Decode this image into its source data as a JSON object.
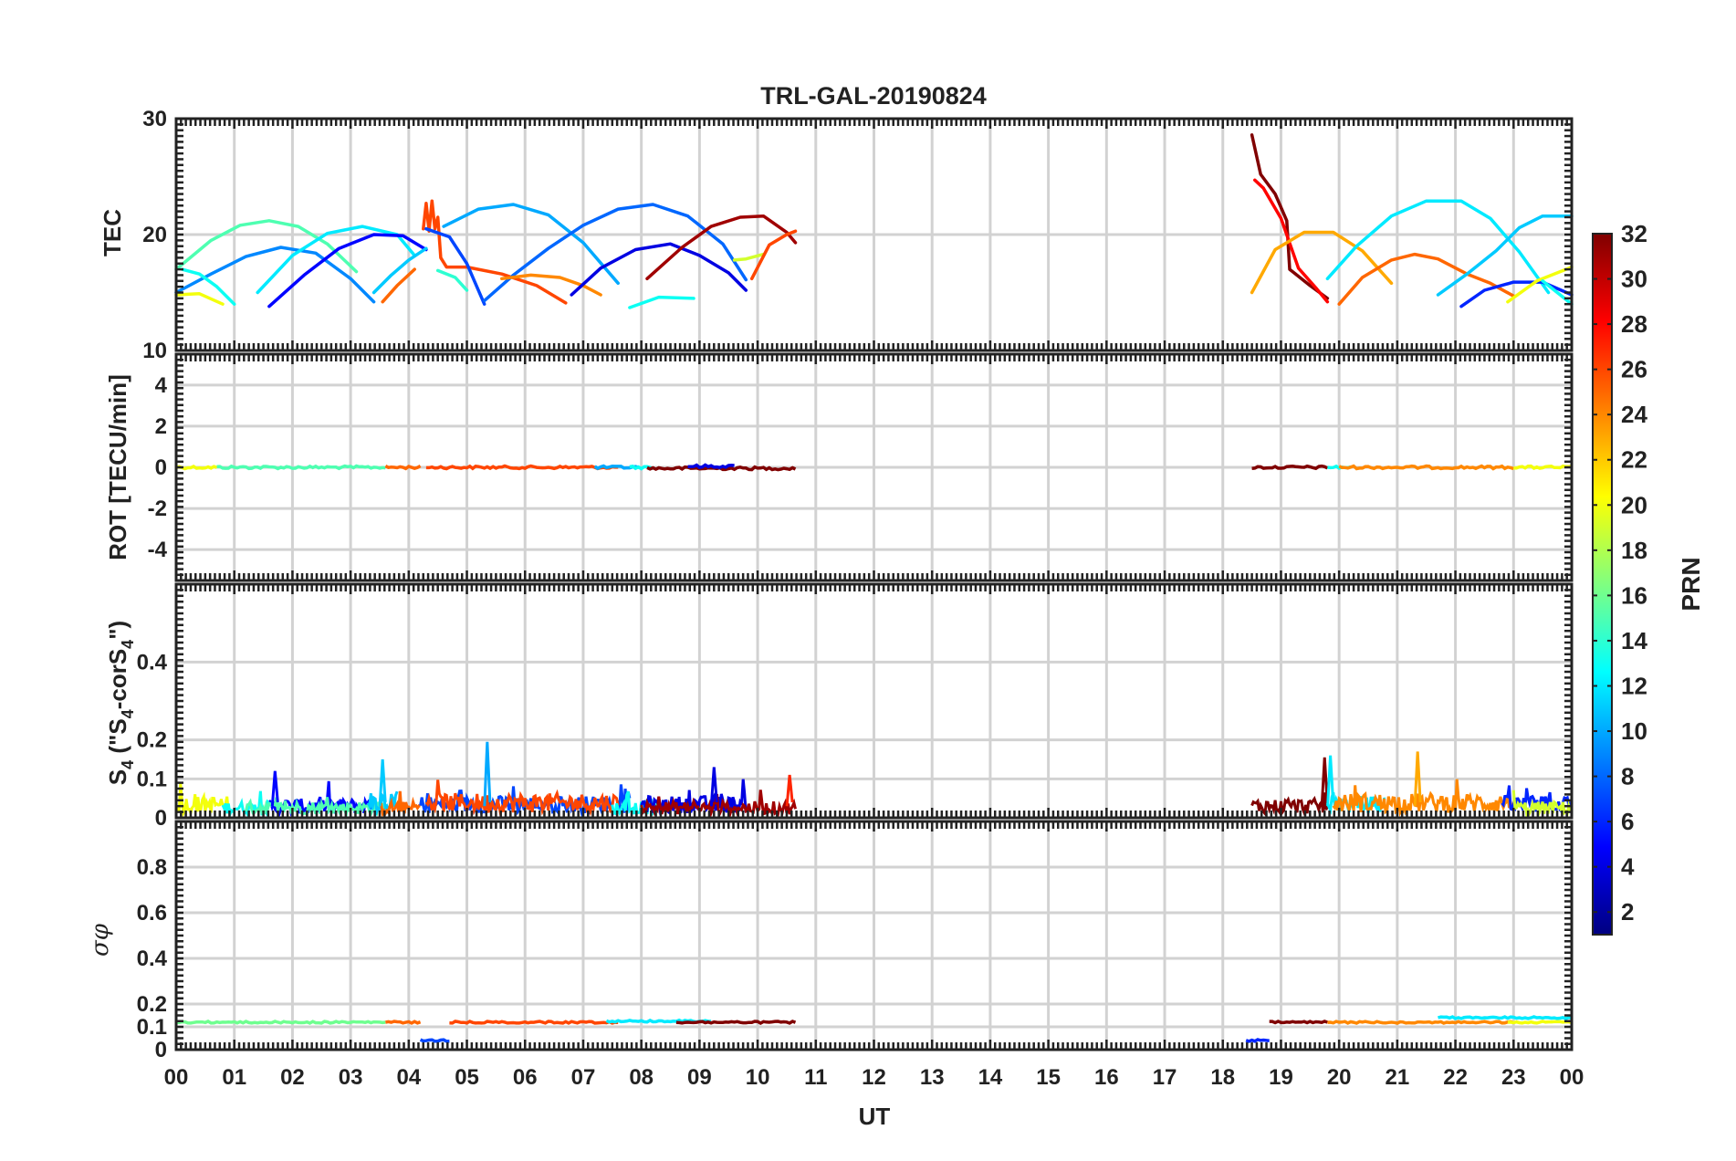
{
  "chart_data": {
    "type": "line",
    "title": "TRL-GAL-20190824",
    "xlabel": "UT",
    "x_ticks": [
      "00",
      "01",
      "02",
      "03",
      "04",
      "05",
      "06",
      "07",
      "08",
      "09",
      "10",
      "11",
      "12",
      "13",
      "14",
      "15",
      "16",
      "17",
      "18",
      "19",
      "20",
      "21",
      "22",
      "23",
      "00"
    ],
    "xlim": [
      0,
      24
    ],
    "colorbar": {
      "label": "PRN",
      "range": [
        1,
        32
      ],
      "ticks": [
        "2",
        "4",
        "6",
        "8",
        "10",
        "12",
        "14",
        "16",
        "18",
        "20",
        "22",
        "24",
        "26",
        "28",
        "30",
        "32"
      ]
    },
    "panels": [
      {
        "id": "tec",
        "ylabel": "TEC",
        "ylim": [
          10,
          30
        ],
        "y_ticks": [
          "10",
          "20",
          "30"
        ],
        "series": [
          {
            "prn": 9,
            "x": [
              0.0,
              0.6,
              1.2,
              1.8,
              2.4,
              3.0,
              3.4
            ],
            "y": [
              15,
              16.6,
              18.1,
              18.9,
              18.4,
              16.2,
              14.2
            ]
          },
          {
            "prn": 15,
            "x": [
              0.0,
              0.6,
              1.1,
              1.6,
              2.1,
              2.6,
              3.1
            ],
            "y": [
              17,
              19.5,
              20.8,
              21.2,
              20.7,
              19.2,
              16.8
            ]
          },
          {
            "prn": 13,
            "x": [
              0.1,
              0.4,
              0.7,
              1.0
            ],
            "y": [
              17,
              16.6,
              15.5,
              14
            ]
          },
          {
            "prn": 20,
            "x": [
              0.0,
              0.4,
              0.8
            ],
            "y": [
              14.8,
              14.9,
              14
            ]
          },
          {
            "prn": 12,
            "x": [
              1.4,
              2.0,
              2.6,
              3.2,
              3.8,
              4.1
            ],
            "y": [
              15,
              18.2,
              20.1,
              20.7,
              20,
              18.2
            ]
          },
          {
            "prn": 5,
            "x": [
              1.6,
              2.2,
              2.8,
              3.4,
              3.9,
              4.3
            ],
            "y": [
              13.8,
              16.5,
              18.8,
              20,
              19.9,
              18.7
            ]
          },
          {
            "prn": 11,
            "x": [
              3.4,
              3.7,
              4.0,
              4.3
            ],
            "y": [
              15,
              16.5,
              17.8,
              18.8
            ]
          },
          {
            "prn": 25,
            "x": [
              3.55,
              3.8,
              4.1
            ],
            "y": [
              14.2,
              15.6,
              17
            ]
          },
          {
            "prn": 26,
            "x": [
              4.25,
              4.3,
              4.35,
              4.4,
              4.45,
              4.5,
              4.55,
              4.65,
              5.0,
              5.6,
              6.2,
              6.7
            ],
            "y": [
              20.5,
              22.7,
              20.3,
              22.9,
              20.5,
              21.5,
              18,
              17.2,
              17.2,
              16.6,
              15.6,
              14.1
            ]
          },
          {
            "prn": 7,
            "x": [
              4.3,
              4.7,
              5.0,
              5.3
            ],
            "y": [
              20.5,
              19.8,
              17.5,
              14
            ]
          },
          {
            "prn": 14,
            "x": [
              4.5,
              4.8,
              5.0
            ],
            "y": [
              16.9,
              16.3,
              15.2
            ]
          },
          {
            "prn": 10,
            "x": [
              4.6,
              5.2,
              5.8,
              6.4,
              7.0,
              7.6
            ],
            "y": [
              20.7,
              22.2,
              22.6,
              21.7,
              19.3,
              15.8
            ]
          },
          {
            "prn": 8,
            "x": [
              5.3,
              5.8,
              6.4,
              7.0,
              7.6,
              8.2,
              8.8,
              9.4,
              9.8
            ],
            "y": [
              14.3,
              16.5,
              18.8,
              20.8,
              22.2,
              22.6,
              21.6,
              19.2,
              16.1
            ]
          },
          {
            "prn": 24,
            "x": [
              5.6,
              6.1,
              6.6,
              7.0,
              7.3
            ],
            "y": [
              16.2,
              16.5,
              16.3,
              15.6,
              14.8
            ]
          },
          {
            "prn": 4,
            "x": [
              6.8,
              7.3,
              7.9,
              8.5,
              9.0,
              9.5,
              9.8
            ],
            "y": [
              14.8,
              17.1,
              18.7,
              19.2,
              18.2,
              16.7,
              15.2
            ]
          },
          {
            "prn": 13,
            "x": [
              7.8,
              8.3,
              8.9
            ],
            "y": [
              13.7,
              14.6,
              14.5
            ]
          },
          {
            "prn": 31,
            "x": [
              8.1,
              8.7,
              9.2,
              9.7,
              10.1,
              10.5,
              10.65
            ],
            "y": [
              16.2,
              18.9,
              20.7,
              21.5,
              21.6,
              20.2,
              19.3
            ]
          },
          {
            "prn": 19,
            "x": [
              9.6,
              9.8,
              10.1
            ],
            "y": [
              17.8,
              17.9,
              18.3
            ]
          },
          {
            "prn": 26,
            "x": [
              9.9,
              10.2,
              10.5,
              10.65
            ],
            "y": [
              16.2,
              19.1,
              20,
              20.3
            ]
          },
          {
            "prn": 32,
            "x": [
              18.5,
              18.65,
              18.9,
              19.1,
              19.15,
              19.2,
              19.5,
              19.8
            ],
            "y": [
              28.6,
              25.2,
              23.5,
              21.2,
              17,
              16.8,
              15.6,
              14.5
            ]
          },
          {
            "prn": 28,
            "x": [
              18.55,
              18.7,
              19.0,
              19.3,
              19.6,
              19.8
            ],
            "y": [
              24.7,
              24,
              21.4,
              17.1,
              15.4,
              14.2
            ]
          },
          {
            "prn": 23,
            "x": [
              18.5,
              18.9,
              19.4,
              19.9,
              20.4,
              20.9
            ],
            "y": [
              15,
              18.7,
              20.2,
              20.2,
              18.6,
              15.8
            ]
          },
          {
            "prn": 25,
            "x": [
              20.0,
              20.4,
              20.9,
              21.3,
              21.7,
              22.2,
              22.6,
              23.0
            ],
            "y": [
              14,
              16.3,
              17.8,
              18.3,
              17.9,
              16.6,
              15.8,
              14.7
            ]
          },
          {
            "prn": 12,
            "x": [
              19.8,
              20.3,
              20.9,
              21.5,
              22.1,
              22.6,
              23.1,
              23.6
            ],
            "y": [
              16.2,
              19,
              21.6,
              22.9,
              22.9,
              21.4,
              18.5,
              15
            ]
          },
          {
            "prn": 11,
            "x": [
              21.7,
              22.2,
              22.7,
              23.1,
              23.5,
              24.0
            ],
            "y": [
              14.8,
              16.6,
              18.6,
              20.6,
              21.6,
              21.6
            ]
          },
          {
            "prn": 6,
            "x": [
              22.1,
              22.5,
              23.0,
              23.5,
              24.0
            ],
            "y": [
              13.8,
              15.2,
              15.9,
              15.9,
              14.8
            ]
          },
          {
            "prn": 20,
            "x": [
              22.9,
              23.4,
              24.0
            ],
            "y": [
              14.2,
              16,
              17.2
            ]
          },
          {
            "prn": 13,
            "x": [
              23.5,
              23.8,
              24.0
            ],
            "y": [
              16,
              14.8,
              14
            ]
          }
        ]
      },
      {
        "id": "rot",
        "ylabel": "ROT [TECU/min]",
        "ylim": [
          -5.5,
          5.5
        ],
        "y_ticks": [
          "-4",
          "-2",
          "0",
          "2",
          "4"
        ],
        "segments": [
          {
            "prn": 20,
            "x": [
              0.0,
              0.7
            ],
            "y": 0
          },
          {
            "prn": 15,
            "x": [
              0.7,
              3.6
            ],
            "y": 0
          },
          {
            "prn": 25,
            "x": [
              3.6,
              4.2
            ],
            "y": 0
          },
          {
            "prn": 26,
            "x": [
              4.3,
              7.6
            ],
            "y": 0
          },
          {
            "prn": 10,
            "x": [
              7.2,
              8.0
            ],
            "y": 0
          },
          {
            "prn": 13,
            "x": [
              7.8,
              8.2
            ],
            "y": 0
          },
          {
            "prn": 32,
            "x": [
              8.1,
              10.65
            ],
            "y": -0.05
          },
          {
            "prn": 4,
            "x": [
              8.8,
              9.6
            ],
            "y": 0.05
          },
          {
            "prn": 32,
            "x": [
              18.5,
              19.8
            ],
            "y": 0
          },
          {
            "prn": 13,
            "x": [
              19.8,
              20.2
            ],
            "y": 0
          },
          {
            "prn": 24,
            "x": [
              20.0,
              23.0
            ],
            "y": 0
          },
          {
            "prn": 20,
            "x": [
              23.0,
              24.0
            ],
            "y": 0
          }
        ]
      },
      {
        "id": "s4",
        "ylabel": "S4 (\"S4-corS4\")",
        "ylabel_parts": [
          "S",
          "4",
          " (\"S",
          "4",
          "-corS",
          "4",
          "\")"
        ],
        "ylim": [
          0,
          0.6
        ],
        "y_ticks": [
          "0",
          "0.1",
          "0.2",
          "0.4"
        ],
        "noise_segments": [
          {
            "prn": 20,
            "x": [
              0.0,
              0.9
            ],
            "base": 0.04
          },
          {
            "prn": 13,
            "x": [
              0.8,
              1.6
            ],
            "base": 0.03
          },
          {
            "prn": 5,
            "x": [
              1.6,
              3.4
            ],
            "base": 0.035
          },
          {
            "prn": 15,
            "x": [
              1.2,
              3.6
            ],
            "base": 0.03
          },
          {
            "prn": 11,
            "x": [
              3.3,
              3.8
            ],
            "base": 0.05
          },
          {
            "prn": 25,
            "x": [
              3.5,
              4.2
            ],
            "base": 0.03
          },
          {
            "prn": 7,
            "x": [
              4.2,
              7.8
            ],
            "base": 0.04
          },
          {
            "prn": 26,
            "x": [
              4.3,
              7.6
            ],
            "base": 0.045
          },
          {
            "prn": 13,
            "x": [
              7.5,
              8.3
            ],
            "base": 0.03
          },
          {
            "prn": 4,
            "x": [
              8.0,
              9.8
            ],
            "base": 0.04
          },
          {
            "prn": 31,
            "x": [
              8.0,
              10.65
            ],
            "base": 0.03
          },
          {
            "prn": 32,
            "x": [
              18.5,
              19.8
            ],
            "base": 0.035
          },
          {
            "prn": 12,
            "x": [
              19.8,
              20.8
            ],
            "base": 0.04
          },
          {
            "prn": 24,
            "x": [
              19.9,
              23.0
            ],
            "base": 0.045
          },
          {
            "prn": 6,
            "x": [
              22.8,
              24.0
            ],
            "base": 0.04
          },
          {
            "prn": 19,
            "x": [
              23.0,
              24.0
            ],
            "base": 0.03
          }
        ],
        "spikes": [
          {
            "prn": 10,
            "x": 5.35,
            "y": 0.195
          },
          {
            "prn": 11,
            "x": 3.55,
            "y": 0.15
          },
          {
            "prn": 32,
            "x": 19.75,
            "y": 0.155
          },
          {
            "prn": 12,
            "x": 19.85,
            "y": 0.16
          },
          {
            "prn": 23,
            "x": 21.35,
            "y": 0.17
          },
          {
            "prn": 4,
            "x": 9.25,
            "y": 0.13
          },
          {
            "prn": 5,
            "x": 1.7,
            "y": 0.12
          },
          {
            "prn": 27,
            "x": 10.55,
            "y": 0.11
          }
        ]
      },
      {
        "id": "sigphi",
        "ylabel": "σφ",
        "ylim": [
          0,
          1
        ],
        "y_ticks": [
          "0",
          "0.1",
          "0.2",
          "0.4",
          "0.6",
          "0.8"
        ],
        "segments": [
          {
            "prn": 16,
            "x": [
              0.0,
              3.6
            ],
            "y": 0.12
          },
          {
            "prn": 25,
            "x": [
              3.6,
              4.2
            ],
            "y": 0.12
          },
          {
            "prn": 7,
            "x": [
              4.2,
              4.7
            ],
            "y": 0.04
          },
          {
            "prn": 26,
            "x": [
              4.7,
              7.6
            ],
            "y": 0.12
          },
          {
            "prn": 12,
            "x": [
              7.4,
              9.2
            ],
            "y": 0.125
          },
          {
            "prn": 32,
            "x": [
              8.6,
              10.65
            ],
            "y": 0.12
          },
          {
            "prn": 6,
            "x": [
              18.4,
              18.8
            ],
            "y": 0.04
          },
          {
            "prn": 32,
            "x": [
              18.8,
              19.8
            ],
            "y": 0.12
          },
          {
            "prn": 24,
            "x": [
              19.8,
              23.0
            ],
            "y": 0.12
          },
          {
            "prn": 12,
            "x": [
              21.7,
              24.0
            ],
            "y": 0.14
          },
          {
            "prn": 20,
            "x": [
              22.9,
              24.0
            ],
            "y": 0.12
          }
        ]
      }
    ]
  }
}
